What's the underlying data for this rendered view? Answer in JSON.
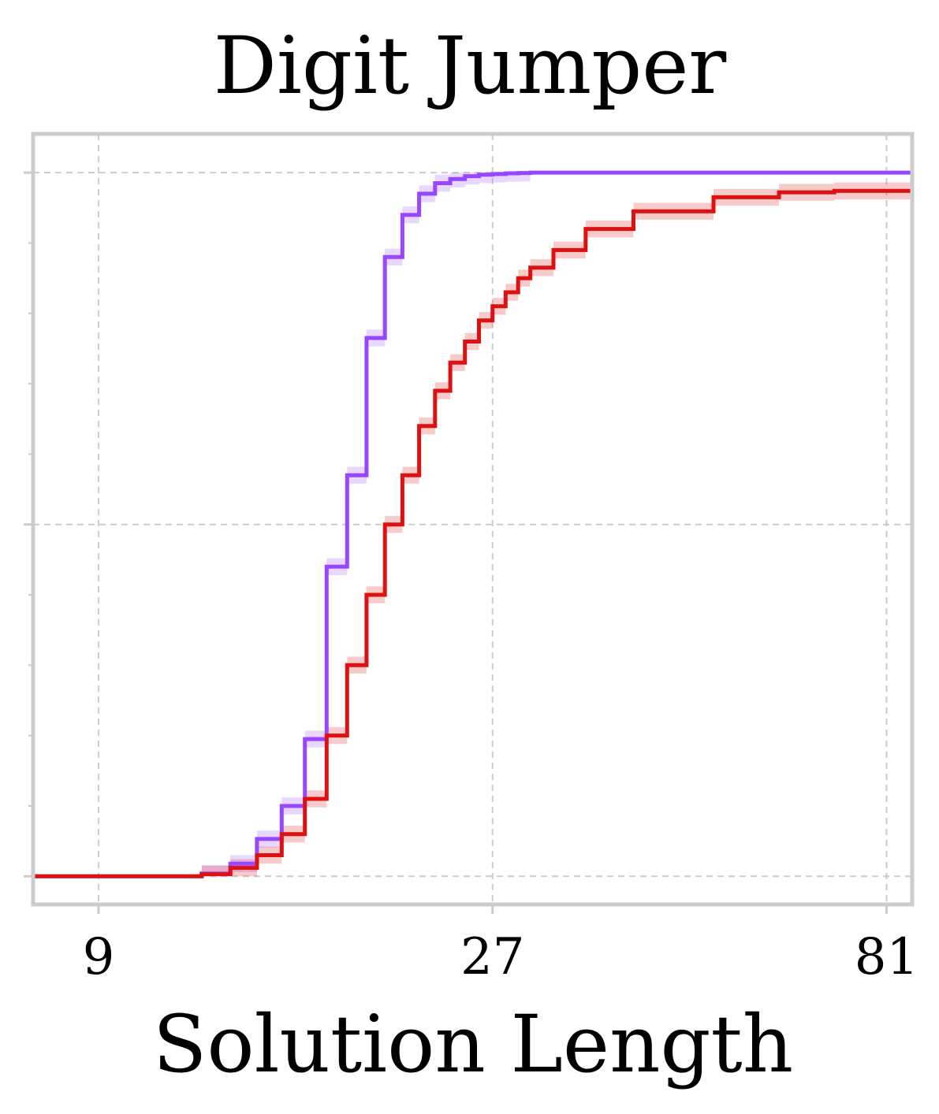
{
  "chart_data": {
    "type": "line",
    "title": "Digit Jumper",
    "xlabel": "Solution Length",
    "ylabel": "",
    "x_scale": "log3",
    "xlim": [
      7.5,
      87
    ],
    "ylim": [
      -0.04,
      1.055
    ],
    "x_ticks": [
      9,
      27,
      81
    ],
    "x_tick_labels": [
      "9",
      "27",
      "81"
    ],
    "y_major_ticks": [
      0,
      0.5,
      1.0
    ],
    "y_minor_ticks": [
      0.1,
      0.2,
      0.3,
      0.4,
      0.6,
      0.7,
      0.8,
      0.9
    ],
    "grid": true,
    "series": [
      {
        "color": "#9747ff",
        "x": [
          7.5,
          10,
          12,
          13,
          14,
          15,
          16,
          17,
          18,
          19,
          20,
          21,
          22,
          23,
          24,
          25,
          26,
          27,
          28,
          29,
          30,
          32,
          35,
          40,
          87
        ],
        "y": [
          0,
          0,
          0.004,
          0.018,
          0.053,
          0.1,
          0.195,
          0.44,
          0.57,
          0.765,
          0.88,
          0.94,
          0.97,
          0.985,
          0.991,
          0.995,
          0.997,
          0.998,
          0.999,
          0.9995,
          1.0,
          1.0,
          1.0,
          1.0,
          1.0
        ],
        "band": 0.012
      },
      {
        "color": "#dd1111",
        "x": [
          7.5,
          11,
          12,
          13,
          14,
          15,
          16,
          17,
          18,
          19,
          20,
          21,
          22,
          23,
          24,
          25,
          26,
          27,
          28,
          29,
          30,
          32,
          35,
          40,
          50,
          60,
          70,
          87
        ],
        "y": [
          0,
          0,
          0.003,
          0.012,
          0.03,
          0.06,
          0.11,
          0.2,
          0.3,
          0.4,
          0.5,
          0.57,
          0.64,
          0.69,
          0.73,
          0.76,
          0.79,
          0.81,
          0.83,
          0.85,
          0.865,
          0.89,
          0.92,
          0.945,
          0.965,
          0.972,
          0.974,
          0.975
        ],
        "band": 0.012
      }
    ]
  }
}
